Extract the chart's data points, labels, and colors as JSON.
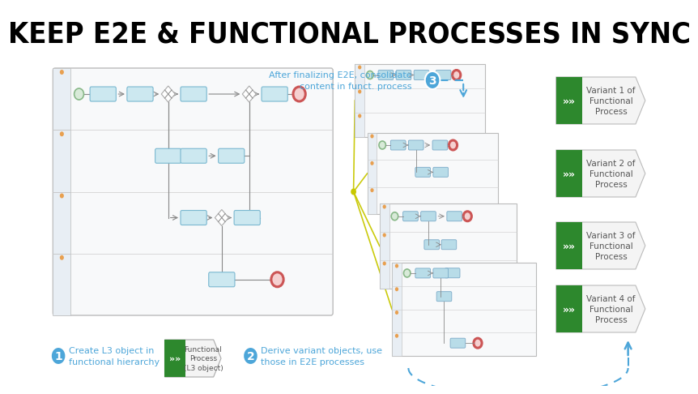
{
  "title": "KEEP E2E & FUNCTIONAL PROCESSES IN SYNC",
  "title_fontsize": 26,
  "bg_color": "#ffffff",
  "blue_color": "#4da6d9",
  "green_color": "#2d882d",
  "yellow_line_color": "#c8c800",
  "step1_text": "Create L3 object in\nfunctional hierarchy",
  "step2_text": "Derive variant objects, use\nthose in E2E processes",
  "step3_text": "After finalizing E2E, consolidate\ncontent in funct. process",
  "variant_labels": [
    "Variant 1 of\nFunctional\nProcess",
    "Variant 2 of\nFunctional\nProcess",
    "Variant 3 of\nFunctional\nProcess",
    "Variant 4 of\nFunctional\nProcess"
  ],
  "task_color": "#cce8f0",
  "task_ec": "#7ab8d0",
  "lane_header_color": "#e8eef4",
  "lane_header_ec": "#bbbbbb",
  "process_bg": "#f8f9fa",
  "process_ec": "#bbbbbb",
  "separator_color": "#cccccc",
  "end_event_fc": "#f5d0d0",
  "end_event_ec": "#cc5555",
  "start_event_fc": "#d8ead8",
  "start_event_ec": "#88b888",
  "gateway_fc": "#ffffff",
  "gateway_ec": "#aaaaaa",
  "conn_color": "#888888",
  "small_task_color": "#b8dce8",
  "small_task_ec": "#7aaac8",
  "orange_dot_color": "#e8a050"
}
